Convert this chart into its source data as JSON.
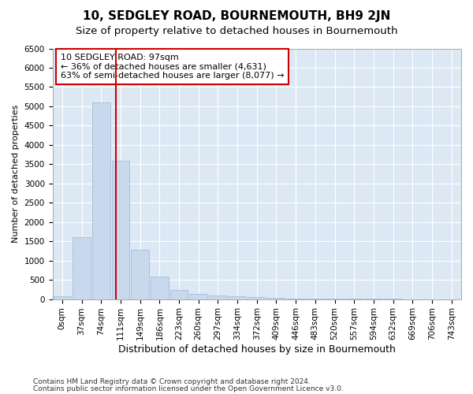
{
  "title": "10, SEDGLEY ROAD, BOURNEMOUTH, BH9 2JN",
  "subtitle": "Size of property relative to detached houses in Bournemouth",
  "xlabel": "Distribution of detached houses by size in Bournemouth",
  "ylabel": "Number of detached properties",
  "categories": [
    "0sqm",
    "37sqm",
    "74sqm",
    "111sqm",
    "149sqm",
    "186sqm",
    "223sqm",
    "260sqm",
    "297sqm",
    "334sqm",
    "372sqm",
    "409sqm",
    "446sqm",
    "483sqm",
    "520sqm",
    "557sqm",
    "594sqm",
    "632sqm",
    "669sqm",
    "706sqm",
    "743sqm"
  ],
  "values": [
    70,
    1600,
    5100,
    3580,
    1280,
    590,
    245,
    130,
    95,
    65,
    48,
    28,
    14,
    7,
    5,
    3,
    2,
    2,
    1,
    1,
    1
  ],
  "bar_color": "#c8d9ee",
  "bar_edge_color": "#9ab5d5",
  "vline_x": 2.75,
  "vline_color": "#cc0000",
  "annotation_text": "10 SEDGLEY ROAD: 97sqm\n← 36% of detached houses are smaller (4,631)\n63% of semi-detached houses are larger (8,077) →",
  "annotation_box_color": "#ffffff",
  "annotation_box_edge": "#cc0000",
  "ylim": [
    0,
    6500
  ],
  "yticks": [
    0,
    500,
    1000,
    1500,
    2000,
    2500,
    3000,
    3500,
    4000,
    4500,
    5000,
    5500,
    6000,
    6500
  ],
  "footer1": "Contains HM Land Registry data © Crown copyright and database right 2024.",
  "footer2": "Contains public sector information licensed under the Open Government Licence v3.0.",
  "bg_color": "#ffffff",
  "plot_bg_color": "#dde8f5",
  "grid_color": "#ffffff",
  "title_fontsize": 11,
  "subtitle_fontsize": 9.5,
  "xlabel_fontsize": 9,
  "ylabel_fontsize": 8,
  "tick_fontsize": 7.5,
  "footer_fontsize": 6.5,
  "annotation_fontsize": 8
}
